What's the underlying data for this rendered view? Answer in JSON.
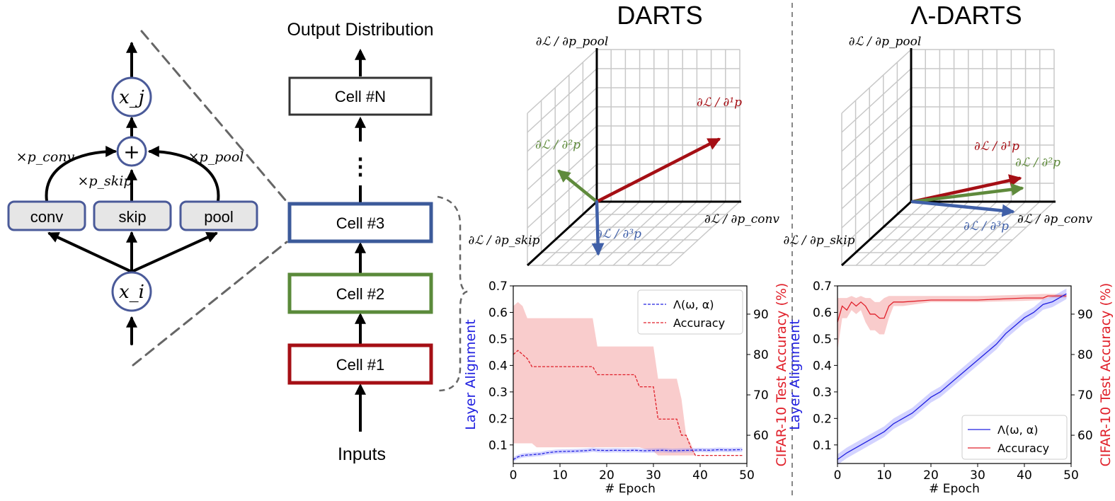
{
  "colors": {
    "cell1": "#a50f15",
    "cell2": "#5a8a3a",
    "cell3": "#3c5a9a",
    "gradBlue": "#4060a8",
    "gradRed": "#a50f15",
    "gradGreen": "#5f8a3c",
    "nodeStroke": "#4a5a99",
    "opFill": "#e6e6e6",
    "alignBlue": "#2020e0",
    "accRed": "#e0202a"
  },
  "cell_diagram": {
    "node_in": "x_i",
    "node_out": "x_j",
    "sum_symbol": "+",
    "ops": [
      "conv",
      "skip",
      "pool"
    ],
    "weight_conv": "×p_conv",
    "weight_skip": "×p_skip",
    "weight_pool": "×p_pool"
  },
  "network": {
    "output_label": "Output Distribution",
    "input_label": "Inputs",
    "cells": [
      "Cell #N",
      "Cell #3",
      "Cell #2",
      "Cell #1"
    ],
    "ellipsis": "⋮"
  },
  "panels": {
    "darts_title": "DARTS",
    "lambda_title": "Λ-DARTS",
    "axis_pool": "∂ℒ / ∂p_pool",
    "axis_skip": "∂ℒ / ∂p_skip",
    "axis_conv": "∂ℒ / ∂p_conv",
    "grad1": "∂ℒ / ∂¹p",
    "grad2": "∂ℒ / ∂²p",
    "grad3": "∂ℒ / ∂³p"
  },
  "chart_data": [
    {
      "type": "line",
      "title": "DARTS",
      "xlabel": "# Epoch",
      "ylabel": "Layer Alignment",
      "ylabel_right": "CIFAR-10 Test Accuracy (%)",
      "xlim": [
        0,
        50
      ],
      "ylim": [
        0.03,
        0.7
      ],
      "ylim_right": [
        53,
        97
      ],
      "xticks": [
        0,
        10,
        20,
        30,
        40,
        50
      ],
      "yticks": [
        0.1,
        0.2,
        0.3,
        0.4,
        0.5,
        0.6,
        0.7
      ],
      "yticks_right": [
        60,
        70,
        80,
        90
      ],
      "legend_position": "top-right",
      "line_style": "dashed",
      "series": [
        {
          "name": "Λ(ω, α)",
          "axis": "left",
          "x": [
            0,
            1,
            2,
            3,
            4,
            5,
            6,
            7,
            8,
            9,
            10,
            12,
            14,
            16,
            17,
            18,
            20,
            22,
            24,
            26,
            28,
            30,
            32,
            34,
            36,
            38,
            40,
            42,
            44,
            46,
            48,
            49
          ],
          "values": [
            0.045,
            0.055,
            0.06,
            0.062,
            0.063,
            0.065,
            0.066,
            0.07,
            0.072,
            0.074,
            0.075,
            0.076,
            0.077,
            0.079,
            0.082,
            0.08,
            0.079,
            0.08,
            0.079,
            0.08,
            0.078,
            0.079,
            0.08,
            0.078,
            0.079,
            0.08,
            0.081,
            0.08,
            0.082,
            0.081,
            0.082,
            0.082
          ],
          "band": 0.008
        },
        {
          "name": "Accuracy",
          "axis": "right",
          "x": [
            0,
            1,
            2,
            3,
            4,
            5,
            10,
            17,
            18,
            26,
            27,
            30,
            31,
            33,
            35,
            36,
            37,
            38,
            39,
            40,
            49
          ],
          "values": [
            80,
            81,
            80,
            79,
            77,
            77,
            77,
            77,
            75,
            75,
            72,
            72,
            64,
            64,
            64,
            60,
            60,
            57,
            55,
            55,
            55
          ],
          "band_low": [
            58,
            58,
            58,
            58,
            58,
            57,
            57,
            57,
            57,
            57,
            57,
            56,
            55,
            55,
            55,
            55,
            55,
            55,
            55,
            55,
            55
          ],
          "band_high": [
            92,
            93,
            92,
            89,
            89,
            89,
            89,
            89,
            82,
            82,
            82,
            82,
            74,
            74,
            74,
            69,
            60,
            58,
            55,
            55,
            55
          ]
        }
      ]
    },
    {
      "type": "line",
      "title": "Λ-DARTS",
      "xlabel": "# Epoch",
      "ylabel": "Layer Alignment",
      "ylabel_right": "CIFAR-10 Test Accuracy (%)",
      "xlim": [
        0,
        50
      ],
      "ylim": [
        0.03,
        0.7
      ],
      "ylim_right": [
        53,
        97
      ],
      "xticks": [
        0,
        10,
        20,
        30,
        40,
        50
      ],
      "yticks": [
        0.1,
        0.2,
        0.3,
        0.4,
        0.5,
        0.6,
        0.7
      ],
      "yticks_right": [
        60,
        70,
        80,
        90
      ],
      "legend_position": "bottom-right",
      "line_style": "solid",
      "series": [
        {
          "name": "Λ(ω, α)",
          "axis": "left",
          "x": [
            0,
            2,
            4,
            6,
            8,
            10,
            12,
            14,
            16,
            18,
            20,
            22,
            24,
            26,
            28,
            30,
            32,
            34,
            36,
            38,
            40,
            42,
            44,
            46,
            48,
            49
          ],
          "values": [
            0.045,
            0.07,
            0.09,
            0.11,
            0.13,
            0.15,
            0.18,
            0.2,
            0.22,
            0.25,
            0.28,
            0.3,
            0.33,
            0.36,
            0.39,
            0.42,
            0.45,
            0.48,
            0.52,
            0.55,
            0.58,
            0.6,
            0.63,
            0.64,
            0.66,
            0.67
          ],
          "band": 0.02
        },
        {
          "name": "Accuracy",
          "axis": "right",
          "x": [
            0,
            1,
            2,
            3,
            4,
            5,
            6,
            7,
            8,
            9,
            10,
            11,
            12,
            14,
            20,
            30,
            40,
            44,
            45,
            49
          ],
          "values": [
            88,
            92,
            91,
            93,
            92,
            93,
            92,
            90,
            90,
            89,
            89,
            92,
            93,
            93,
            93.5,
            93.5,
            94,
            94,
            94.5,
            94.5
          ],
          "band_low": [
            81,
            89,
            89,
            91,
            90,
            91,
            88,
            86,
            86,
            85,
            85,
            89,
            92,
            92,
            93,
            93,
            93.3,
            93.5,
            94,
            94
          ],
          "band_high": [
            94,
            94,
            94,
            94.5,
            94,
            94.5,
            94,
            94,
            93,
            93,
            94,
            94.5,
            94.5,
            94.5,
            94.5,
            94.5,
            94.8,
            95,
            95,
            95
          ]
        }
      ]
    }
  ]
}
